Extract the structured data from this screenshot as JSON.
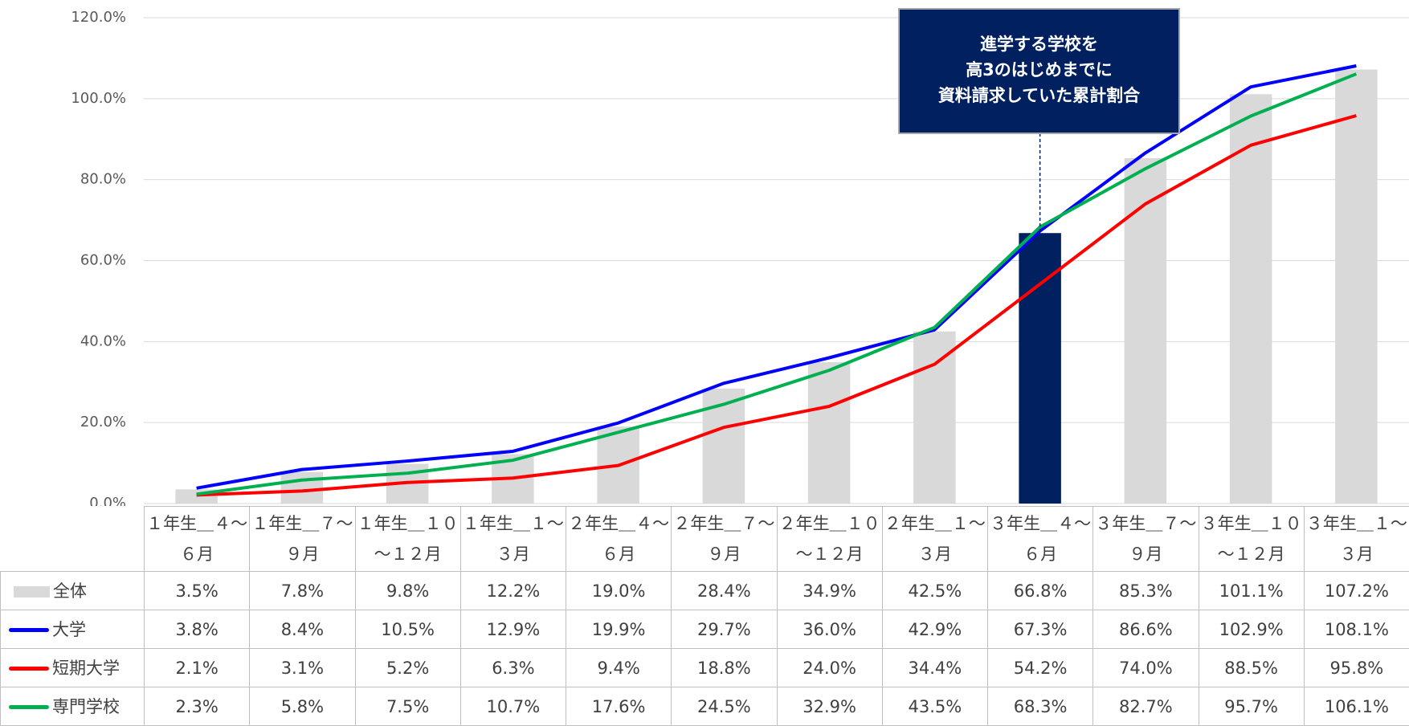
{
  "chart_data": {
    "type": "bar",
    "categories": [
      "１年生＿４～６月",
      "１年生＿７～９月",
      "１年生＿１０～１２月",
      "１年生＿１～３月",
      "２年生＿４～６月",
      "２年生＿７～９月",
      "２年生＿１０～１２月",
      "２年生＿１～３月",
      "３年生＿４～６月",
      "３年生＿７～９月",
      "３年生＿１０～１２月",
      "３年生＿１～３月"
    ],
    "series": [
      {
        "name": "全体",
        "type": "bar",
        "color": "#d9d9d9",
        "values": [
          3.5,
          7.8,
          9.8,
          12.2,
          19.0,
          28.4,
          34.9,
          42.5,
          66.8,
          85.3,
          101.1,
          107.2
        ],
        "value_labels": [
          "3.5%",
          "7.8%",
          "9.8%",
          "12.2%",
          "19.0%",
          "28.4%",
          "34.9%",
          "42.5%",
          "66.8%",
          "85.3%",
          "101.1%",
          "107.2%"
        ]
      },
      {
        "name": "大学",
        "type": "line",
        "color": "#0000ff",
        "values": [
          3.8,
          8.4,
          10.5,
          12.9,
          19.9,
          29.7,
          36.0,
          42.9,
          67.3,
          86.6,
          102.9,
          108.1
        ],
        "value_labels": [
          "3.8%",
          "8.4%",
          "10.5%",
          "12.9%",
          "19.9%",
          "29.7%",
          "36.0%",
          "42.9%",
          "67.3%",
          "86.6%",
          "102.9%",
          "108.1%"
        ]
      },
      {
        "name": "短期大学",
        "type": "line",
        "color": "#ff0000",
        "values": [
          2.1,
          3.1,
          5.2,
          6.3,
          9.4,
          18.8,
          24.0,
          34.4,
          54.2,
          74.0,
          88.5,
          95.8
        ],
        "value_labels": [
          "2.1%",
          "3.1%",
          "5.2%",
          "6.3%",
          "9.4%",
          "18.8%",
          "24.0%",
          "34.4%",
          "54.2%",
          "74.0%",
          "88.5%",
          "95.8%"
        ]
      },
      {
        "name": "専門学校",
        "type": "line",
        "color": "#00b050",
        "values": [
          2.3,
          5.8,
          7.5,
          10.7,
          17.6,
          24.5,
          32.9,
          43.5,
          68.3,
          82.7,
          95.7,
          106.1
        ],
        "value_labels": [
          "2.3%",
          "5.8%",
          "7.5%",
          "10.7%",
          "17.6%",
          "24.5%",
          "32.9%",
          "43.5%",
          "68.3%",
          "82.7%",
          "95.7%",
          "106.1%"
        ]
      }
    ],
    "highlight_index": 8,
    "highlight_color": "#002060",
    "annotation": [
      "進学する学校を",
      "高3のはじめまでに",
      "資料請求していた累計割合"
    ],
    "ylim": [
      0,
      120
    ],
    "yticks": [
      {
        "value": 0,
        "label": "0.0%"
      },
      {
        "value": 20,
        "label": "20.0%"
      },
      {
        "value": 40,
        "label": "40.0%"
      },
      {
        "value": 60,
        "label": "60.0%"
      },
      {
        "value": 80,
        "label": "80.0%"
      },
      {
        "value": 100,
        "label": "100.0%"
      },
      {
        "value": 120,
        "label": "120.0%"
      }
    ],
    "grid": true
  }
}
